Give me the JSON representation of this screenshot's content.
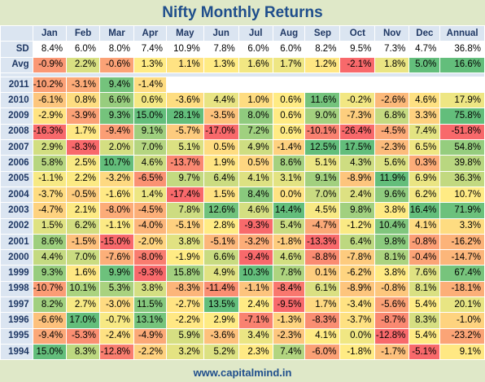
{
  "title": "Nifty Monthly Returns",
  "footer": "www.capitalmind.in",
  "chart_data": {
    "type": "heatmap",
    "title": "Nifty Monthly Returns",
    "columns": [
      "Jan",
      "Feb",
      "Mar",
      "Apr",
      "May",
      "Jun",
      "Jul",
      "Aug",
      "Sep",
      "Oct",
      "Nov",
      "Dec",
      "Annual"
    ],
    "summary_rows": [
      {
        "label": "SD",
        "values": [
          "8.4%",
          "6.0%",
          "8.0%",
          "7.4%",
          "10.9%",
          "7.8%",
          "6.0%",
          "6.0%",
          "8.2%",
          "9.5%",
          "7.3%",
          "4.7%",
          "36.8%"
        ]
      },
      {
        "label": "Avg",
        "values": [
          "-0.9%",
          "2.2%",
          "-0.6%",
          "1.3%",
          "1.1%",
          "1.3%",
          "1.6%",
          "1.7%",
          "1.2%",
          "-2.1%",
          "1.8%",
          "5.0%",
          "16.6%"
        ]
      }
    ],
    "rows": [
      {
        "label": "2011",
        "values": [
          "-10.2%",
          "-3.1%",
          "9.4%",
          "-1.4%",
          "",
          "",
          "",
          "",
          "",
          "",
          "",
          "",
          ""
        ]
      },
      {
        "label": "2010",
        "values": [
          "-6.1%",
          "0.8%",
          "6.6%",
          "0.6%",
          "-3.6%",
          "4.4%",
          "1.0%",
          "0.6%",
          "11.6%",
          "-0.2%",
          "-2.6%",
          "4.6%",
          "17.9%"
        ]
      },
      {
        "label": "2009",
        "values": [
          "-2.9%",
          "-3.9%",
          "9.3%",
          "15.0%",
          "28.1%",
          "-3.5%",
          "8.0%",
          "0.6%",
          "9.0%",
          "-7.3%",
          "6.8%",
          "3.3%",
          "75.8%"
        ]
      },
      {
        "label": "2008",
        "values": [
          "-16.3%",
          "1.7%",
          "-9.4%",
          "9.1%",
          "-5.7%",
          "-17.0%",
          "7.2%",
          "0.6%",
          "-10.1%",
          "-26.4%",
          "-4.5%",
          "7.4%",
          "-51.8%"
        ]
      },
      {
        "label": "2007",
        "values": [
          "2.9%",
          "-8.3%",
          "2.0%",
          "7.0%",
          "5.1%",
          "0.5%",
          "4.9%",
          "-1.4%",
          "12.5%",
          "17.5%",
          "-2.3%",
          "6.5%",
          "54.8%"
        ]
      },
      {
        "label": "2006",
        "values": [
          "5.8%",
          "2.5%",
          "10.7%",
          "4.6%",
          "-13.7%",
          "1.9%",
          "0.5%",
          "8.6%",
          "5.1%",
          "4.3%",
          "5.6%",
          "0.3%",
          "39.8%"
        ]
      },
      {
        "label": "2005",
        "values": [
          "-1.1%",
          "2.2%",
          "-3.2%",
          "-6.5%",
          "9.7%",
          "6.4%",
          "4.1%",
          "3.1%",
          "9.1%",
          "-8.9%",
          "11.9%",
          "6.9%",
          "36.3%"
        ]
      },
      {
        "label": "2004",
        "values": [
          "-3.7%",
          "-0.5%",
          "-1.6%",
          "1.4%",
          "-17.4%",
          "1.5%",
          "8.4%",
          "0.0%",
          "7.0%",
          "2.4%",
          "9.6%",
          "6.2%",
          "10.7%"
        ]
      },
      {
        "label": "2003",
        "values": [
          "-4.7%",
          "2.1%",
          "-8.0%",
          "-4.5%",
          "7.8%",
          "12.6%",
          "4.6%",
          "14.4%",
          "4.5%",
          "9.8%",
          "3.8%",
          "16.4%",
          "71.9%"
        ]
      },
      {
        "label": "2002",
        "values": [
          "1.5%",
          "6.2%",
          "-1.1%",
          "-4.0%",
          "-5.1%",
          "2.8%",
          "-9.3%",
          "5.4%",
          "-4.7%",
          "-1.2%",
          "10.4%",
          "4.1%",
          "3.3%"
        ]
      },
      {
        "label": "2001",
        "values": [
          "8.6%",
          "-1.5%",
          "-15.0%",
          "-2.0%",
          "3.8%",
          "-5.1%",
          "-3.2%",
          "-1.8%",
          "-13.3%",
          "6.4%",
          "9.8%",
          "-0.8%",
          "-16.2%"
        ]
      },
      {
        "label": "2000",
        "values": [
          "4.4%",
          "7.0%",
          "-7.6%",
          "-8.0%",
          "-1.9%",
          "6.6%",
          "-9.4%",
          "4.6%",
          "-8.8%",
          "-7.8%",
          "8.1%",
          "-0.4%",
          "-14.7%"
        ]
      },
      {
        "label": "1999",
        "values": [
          "9.3%",
          "1.6%",
          "9.9%",
          "-9.3%",
          "15.8%",
          "4.9%",
          "10.3%",
          "7.8%",
          "0.1%",
          "-6.2%",
          "3.8%",
          "7.6%",
          "67.4%"
        ]
      },
      {
        "label": "1998",
        "values": [
          "-10.7%",
          "10.1%",
          "5.3%",
          "3.8%",
          "-8.3%",
          "-11.4%",
          "-1.1%",
          "-8.4%",
          "6.1%",
          "-8.9%",
          "-0.8%",
          "8.1%",
          "-18.1%"
        ]
      },
      {
        "label": "1997",
        "values": [
          "8.2%",
          "2.7%",
          "-3.0%",
          "11.5%",
          "-2.7%",
          "13.5%",
          "2.4%",
          "-9.5%",
          "1.7%",
          "-3.4%",
          "-5.6%",
          "5.4%",
          "20.1%"
        ]
      },
      {
        "label": "1996",
        "values": [
          "-6.6%",
          "17.0%",
          "-0.7%",
          "13.1%",
          "-2.2%",
          "2.9%",
          "-7.1%",
          "-1.3%",
          "-8.3%",
          "-3.7%",
          "-8.7%",
          "8.3%",
          "-1.0%"
        ]
      },
      {
        "label": "1995",
        "values": [
          "-9.4%",
          "-5.3%",
          "-2.4%",
          "-4.9%",
          "5.9%",
          "-3.6%",
          "3.4%",
          "-2.3%",
          "4.1%",
          "0.0%",
          "-12.8%",
          "5.4%",
          "-23.2%"
        ]
      },
      {
        "label": "1994",
        "values": [
          "15.0%",
          "8.3%",
          "-12.8%",
          "-2.2%",
          "3.2%",
          "5.2%",
          "2.3%",
          "7.4%",
          "-6.0%",
          "-1.8%",
          "-1.7%",
          "-5.1%",
          "9.1%"
        ]
      }
    ],
    "colors": {
      "low": "#f8696b",
      "mid": "#ffeb84",
      "high": "#63be7b",
      "empty": "#ffffff"
    }
  }
}
